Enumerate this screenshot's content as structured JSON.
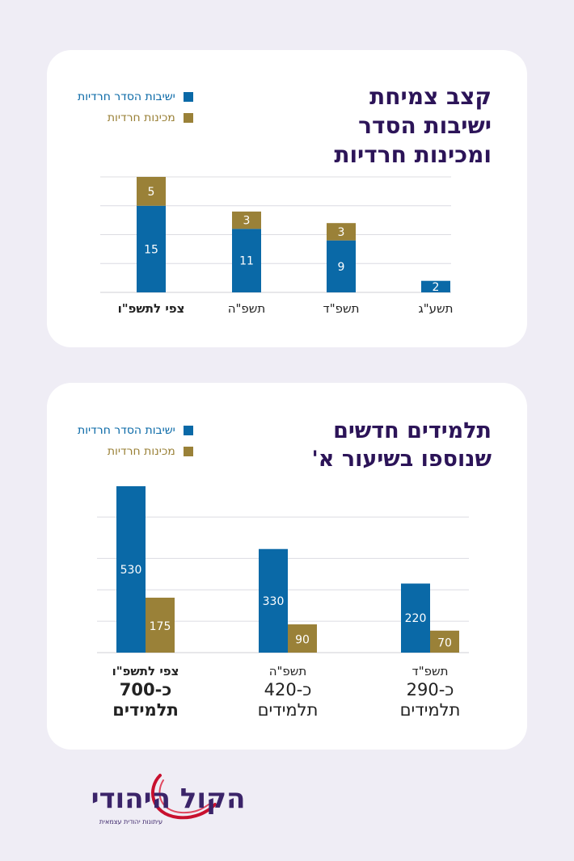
{
  "colors": {
    "blue": "#0a69a7",
    "gold": "#9a8138",
    "title": "#2c1458",
    "logo_red": "#c8102e",
    "logo_purple": "#3b2469"
  },
  "legend": {
    "blue_label": "ישיבות הסדר חרדיות",
    "gold_label": "מכינות חרדיות"
  },
  "chart_data": [
    {
      "type": "bar",
      "stacked": true,
      "title_lines": [
        "קצב צמיחת",
        "ישיבות הסדר",
        "ומכינות חרדיות"
      ],
      "categories": [
        "צפי לתשפ\"ו",
        "תשפ\"ה",
        "תשפ\"ד",
        "תשע\"ג"
      ],
      "category_bold": [
        true,
        false,
        false,
        false
      ],
      "series": [
        {
          "name": "ישיבות הסדר חרדיות",
          "color": "#0a69a7",
          "values": [
            15,
            11,
            9,
            2
          ]
        },
        {
          "name": "מכינות חרדיות",
          "color": "#9a8138",
          "values": [
            5,
            3,
            3,
            0
          ]
        }
      ],
      "ylim": [
        0,
        20
      ],
      "grid": true,
      "legend_position": "top-left"
    },
    {
      "type": "bar",
      "stacked": false,
      "title_lines": [
        "תלמידים חדשים",
        "שנוספו בשיעור א'"
      ],
      "categories": [
        "צפי לתשפ\"ו",
        "תשפ\"ה",
        "תשפ\"ד"
      ],
      "category_lines": [
        [
          "צפי לתשפ\"ו",
          "כ-700",
          "תלמידים"
        ],
        [
          "תשפ\"ה",
          "כ-420",
          "תלמידים"
        ],
        [
          "תשפ\"ד",
          "כ-290",
          "תלמידים"
        ]
      ],
      "category_bold": [
        true,
        false,
        false
      ],
      "series": [
        {
          "name": "ישיבות הסדר חרדיות",
          "color": "#0a69a7",
          "values": [
            530,
            330,
            220
          ]
        },
        {
          "name": "מכינות חרדיות",
          "color": "#9a8138",
          "values": [
            175,
            90,
            70
          ]
        }
      ],
      "ylim": [
        0,
        530
      ],
      "grid": true,
      "legend_position": "top-left"
    }
  ],
  "logo": {
    "name": "הקול היהודי",
    "tagline": "עיתונות יהודית עצמאית"
  }
}
